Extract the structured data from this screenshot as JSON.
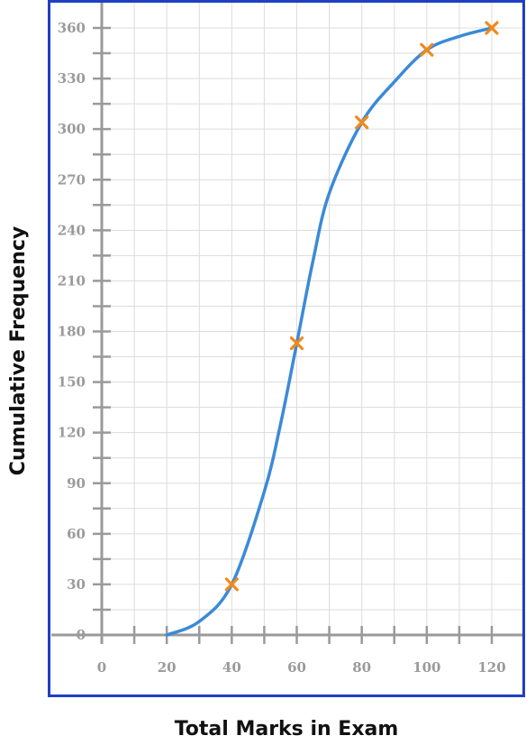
{
  "chart_data": {
    "type": "line",
    "title": "",
    "xlabel": "Total Marks in Exam",
    "ylabel": "Cumulative Frequency",
    "xlim": [
      0,
      120
    ],
    "ylim": [
      0,
      360
    ],
    "x_ticks": [
      0,
      20,
      40,
      60,
      80,
      100,
      120
    ],
    "y_ticks": [
      0,
      30,
      60,
      90,
      120,
      150,
      180,
      210,
      240,
      270,
      300,
      330,
      360
    ],
    "x_minor_step": 10,
    "y_minor_step": 15,
    "grid": true,
    "curve": {
      "x": [
        20,
        30,
        40,
        50,
        55,
        60,
        65,
        70,
        80,
        90,
        100,
        110,
        120
      ],
      "y": [
        0,
        8,
        30,
        85,
        125,
        173,
        222,
        262,
        304,
        328,
        347,
        355,
        360
      ]
    },
    "points": {
      "x": [
        40,
        60,
        80,
        100,
        120
      ],
      "y": [
        30,
        173,
        304,
        347,
        360
      ]
    },
    "colors": {
      "curve": "#3b8ad8",
      "points": "#f08a1c",
      "frame": "#1f3fc4",
      "grid": "#dcdcdc",
      "axis": "#9a9a9a"
    }
  }
}
